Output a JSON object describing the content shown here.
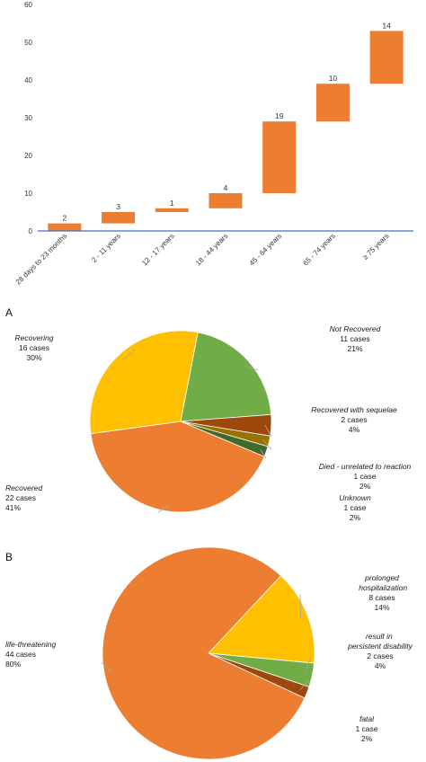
{
  "chart_data": [
    {
      "type": "bar",
      "subtype": "waterfall",
      "categories": [
        "28 days to 23 months",
        "2 - 11 years",
        "12 - 17 years",
        "18 - 44 years",
        "45 - 64 years",
        "65 - 74 years",
        "≥ 75 years"
      ],
      "values": [
        2,
        3,
        1,
        4,
        19,
        10,
        14
      ],
      "ylim": [
        0,
        60
      ],
      "yticks": [
        0,
        10,
        20,
        30,
        40,
        50,
        60
      ],
      "grid": false,
      "colors": {
        "bar": "#ED7D31",
        "axis": "#4472C4"
      }
    },
    {
      "type": "pie",
      "panel_label": "A",
      "slices": [
        {
          "name": "Not Recovered",
          "count": "11 cases",
          "percent": "21%",
          "value": 11,
          "color": "#70AD47"
        },
        {
          "name": "Recovered with sequelae",
          "count": "2 cases",
          "percent": "4%",
          "value": 2,
          "color": "#9E480E"
        },
        {
          "name": "Died - unrelated to reaction",
          "count": "1 case",
          "percent": "2%",
          "value": 1,
          "color": "#997300"
        },
        {
          "name": "Unknown",
          "count": "1 case",
          "percent": "2%",
          "value": 1,
          "color": "#43682B"
        },
        {
          "name": "Recovered",
          "count": "22 cases",
          "percent": "41%",
          "value": 22,
          "color": "#ED7D31"
        },
        {
          "name": "Recovering",
          "count": "16 cases",
          "percent": "30%",
          "value": 16,
          "color": "#FFC000"
        }
      ]
    },
    {
      "type": "pie",
      "panel_label": "B",
      "slices": [
        {
          "name": "prolonged hospitalization",
          "count": "8 cases",
          "percent": "14%",
          "value": 8,
          "color": "#FFC000"
        },
        {
          "name": "result in persistent disability",
          "count": "2 cases",
          "percent": "4%",
          "value": 2,
          "color": "#70AD47"
        },
        {
          "name": "fatal",
          "count": "1 case",
          "percent": "2%",
          "value": 1,
          "color": "#9E480E"
        },
        {
          "name": "life-threatening",
          "count": "44 cases",
          "percent": "80%",
          "value": 44,
          "color": "#ED7D31"
        }
      ]
    }
  ]
}
